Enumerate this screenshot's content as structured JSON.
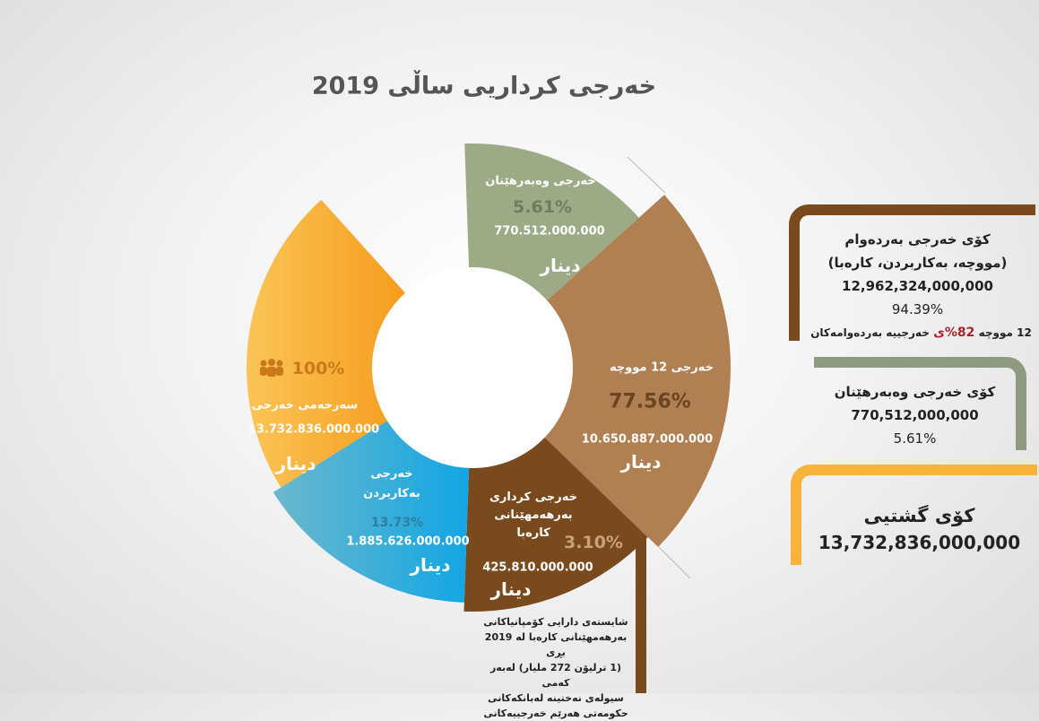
{
  "title": "خەرجی کرداریی ساڵی 2019",
  "segments": [
    {
      "label": "خەرجی وەبەرهێنان",
      "percent": "5.61%",
      "amount": "770.512.000.000",
      "unit": "دینار"
    },
    {
      "label": "خەرجی 12 مووچە",
      "percent": "77.56%",
      "amount": "10.650.887.000.000",
      "unit": "دینار"
    },
    {
      "label": "خەرجی کرداری بەرهەمهێنانی کارەبا",
      "percent": "3.10%",
      "amount": "425.810.000.000",
      "unit": "دینار"
    },
    {
      "label": "خەرجی بەکاربردن",
      "percent": "13.73%",
      "amount": "1.885.626.000.000",
      "unit": "دینار"
    },
    {
      "label": "سەرجەمی خەرجی",
      "percent": "100%",
      "amount": "13.732.836.000.000",
      "unit": "دینار"
    }
  ],
  "panels": [
    {
      "title": "کۆی خەرجی بەردەوام",
      "subtitle": "(مووچە، بەکاربردن، کارەبا)",
      "amount": "12,962,324,000,000",
      "percent": "94.39%",
      "note": {
        "start": "12 مووچە",
        "highlight": "82%ی",
        "end": "خەرجییە بەردەوامەکان"
      }
    },
    {
      "title": "کۆی خەرجی وەبەرهێنان",
      "amount": "770,512,000,000",
      "percent": "5.61%"
    },
    {
      "title": "کۆی گشتیی",
      "amount": "13,732,836,000,000"
    }
  ],
  "note": [
    "شایستەی دارایی کۆمپانیاکانی",
    "بەرهەمهێنانی کارەبا لە 2019 بڕی",
    "(1 ترلیۆن 272 ملیار) لەبەر کەمی",
    "سیولەی نەختینە لەبانکەکانی",
    "حکومەتی هەرێم خەرجییەکانی"
  ]
}
